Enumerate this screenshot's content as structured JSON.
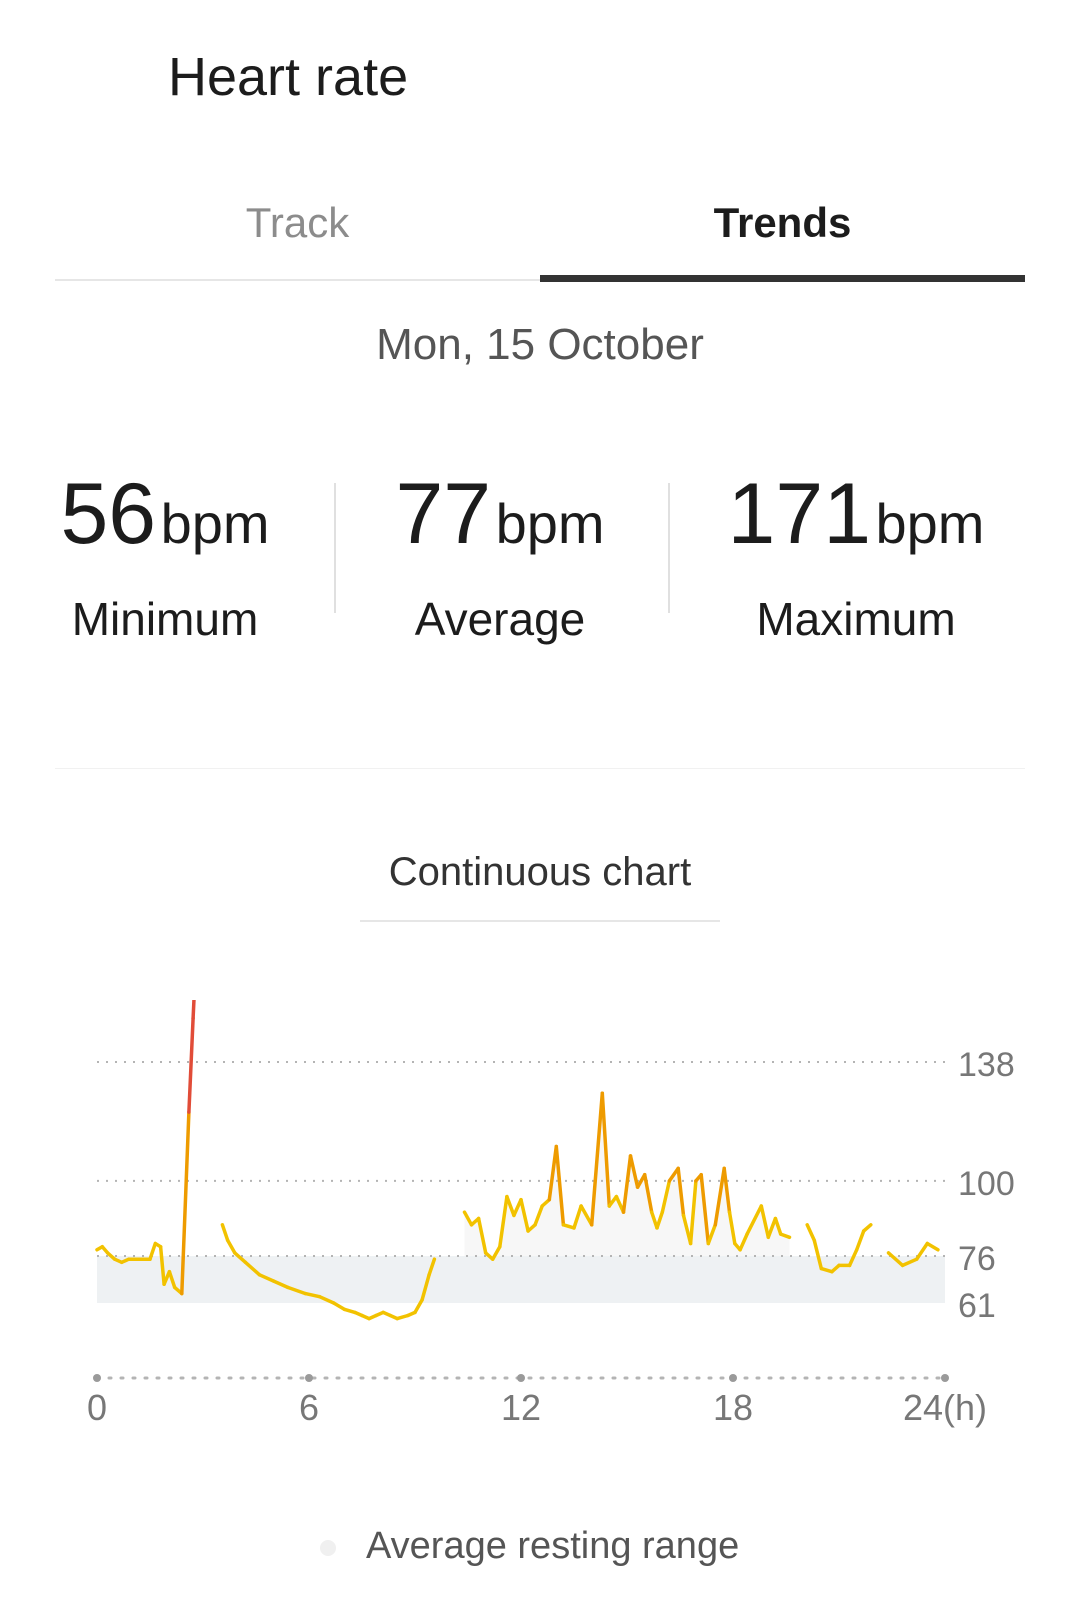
{
  "header": {
    "title": "Heart rate"
  },
  "tabs": [
    {
      "label": "Track"
    },
    {
      "label": "Trends"
    }
  ],
  "date": "Mon, 15 October",
  "stats": {
    "unit": "bpm",
    "min": {
      "value": "56",
      "label": "Minimum"
    },
    "avg": {
      "value": "77",
      "label": "Average"
    },
    "max": {
      "value": "171",
      "label": "Maximum"
    }
  },
  "chart_selector": {
    "label": "Continuous chart"
  },
  "legend": {
    "resting_label": "Average resting range"
  },
  "colors": {
    "line": "#F2C200",
    "elevated": "#EE9B00",
    "peak": "#E14C38",
    "resting_band": "#EEF1F3",
    "grid": "#B4B4B4"
  },
  "chart_data": {
    "type": "line",
    "xlabel": "",
    "ylabel": "",
    "x_ticks": [
      "0",
      "6",
      "12",
      "18",
      "24(h)"
    ],
    "y_ticks": [
      "138",
      "100",
      "76",
      "61"
    ],
    "y_tick_values": [
      138,
      100,
      76,
      61
    ],
    "xlim": [
      0,
      24
    ],
    "ylim": [
      40,
      171
    ],
    "resting_range": [
      61,
      76
    ],
    "series": [
      {
        "segments": [
          [
            [
              0,
              78
            ],
            [
              0.15,
              79
            ],
            [
              0.3,
              77
            ],
            [
              0.5,
              75
            ],
            [
              0.7,
              74
            ],
            [
              0.9,
              75
            ],
            [
              1.2,
              75
            ],
            [
              1.5,
              75
            ],
            [
              1.65,
              80
            ],
            [
              1.8,
              79
            ],
            [
              1.9,
              67
            ],
            [
              2.05,
              71
            ],
            [
              2.2,
              66
            ],
            [
              2.4,
              64
            ],
            [
              2.6,
              122
            ],
            [
              2.72,
              152
            ],
            [
              2.8,
              171
            ]
          ],
          [
            [
              3.55,
              86
            ],
            [
              3.7,
              81
            ],
            [
              3.9,
              77
            ],
            [
              4.2,
              74
            ],
            [
              4.6,
              70
            ],
            [
              5.0,
              68
            ],
            [
              5.4,
              66
            ],
            [
              5.9,
              64
            ],
            [
              6.3,
              63
            ],
            [
              6.7,
              61
            ],
            [
              7.0,
              59
            ],
            [
              7.3,
              58
            ],
            [
              7.5,
              57
            ],
            [
              7.7,
              56
            ],
            [
              7.9,
              57
            ],
            [
              8.1,
              58
            ],
            [
              8.3,
              57
            ],
            [
              8.5,
              56
            ],
            [
              8.8,
              57
            ],
            [
              9.0,
              58
            ],
            [
              9.2,
              62
            ],
            [
              9.4,
              70
            ],
            [
              9.55,
              75
            ]
          ],
          [
            [
              10.4,
              90
            ],
            [
              10.6,
              86
            ],
            [
              10.8,
              88
            ],
            [
              11.0,
              77
            ],
            [
              11.2,
              75
            ],
            [
              11.4,
              79
            ],
            [
              11.6,
              95
            ],
            [
              11.8,
              89
            ],
            [
              12.0,
              94
            ],
            [
              12.2,
              84
            ],
            [
              12.4,
              86
            ],
            [
              12.6,
              92
            ],
            [
              12.8,
              94
            ],
            [
              13.0,
              111
            ],
            [
              13.2,
              86
            ],
            [
              13.5,
              85
            ],
            [
              13.7,
              92
            ],
            [
              14.0,
              86
            ],
            [
              14.3,
              128
            ],
            [
              14.5,
              92
            ],
            [
              14.7,
              95
            ],
            [
              14.9,
              90
            ],
            [
              15.1,
              108
            ],
            [
              15.3,
              98
            ],
            [
              15.5,
              102
            ],
            [
              15.7,
              90
            ],
            [
              15.85,
              85
            ],
            [
              16.0,
              90
            ],
            [
              16.2,
              100
            ],
            [
              16.45,
              104
            ],
            [
              16.6,
              89
            ],
            [
              16.8,
              80
            ],
            [
              16.95,
              100
            ],
            [
              17.1,
              102
            ],
            [
              17.3,
              80
            ],
            [
              17.5,
              86
            ],
            [
              17.75,
              104
            ],
            [
              17.9,
              90
            ],
            [
              18.05,
              80
            ],
            [
              18.2,
              78
            ],
            [
              18.4,
              83
            ],
            [
              18.8,
              92
            ],
            [
              19.0,
              82
            ],
            [
              19.2,
              88
            ],
            [
              19.35,
              83
            ],
            [
              19.6,
              82
            ]
          ],
          [
            [
              20.1,
              86
            ],
            [
              20.3,
              81
            ],
            [
              20.5,
              72
            ],
            [
              20.8,
              71
            ],
            [
              21.0,
              73
            ],
            [
              21.3,
              73
            ],
            [
              21.5,
              78
            ],
            [
              21.7,
              84
            ],
            [
              21.9,
              86
            ]
          ],
          [
            [
              22.4,
              77
            ],
            [
              22.8,
              73
            ],
            [
              23.2,
              75
            ],
            [
              23.5,
              80
            ],
            [
              23.8,
              78
            ]
          ]
        ]
      }
    ]
  }
}
